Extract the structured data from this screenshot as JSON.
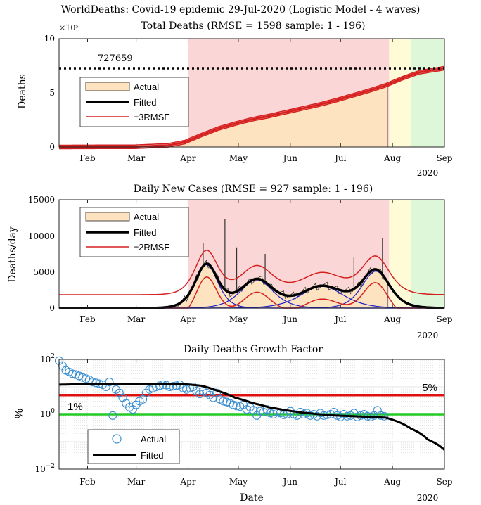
{
  "header": {
    "title": "WorldDeaths: Covid-19 epidemic 29-Jul-2020 (Logistic Model - 4 waves)"
  },
  "colors": {
    "actual_fill": "#fde3c0",
    "fitted": "#000000",
    "band": "#d62020",
    "component": "#2020cc",
    "bg_red": "#fbd6d6",
    "bg_yellow": "#fffbd6",
    "bg_green": "#dff7d9",
    "growth_marker": "#3a8fd0",
    "line_5pct": "#e01010",
    "line_1pct": "#22cc22"
  },
  "chart_data": [
    {
      "type": "area",
      "title": "Total Deaths (RMSE = 1598 sample: 1 - 196)",
      "xlabel": "",
      "ylabel": "Deaths",
      "y_exponent_label": "×10⁵",
      "ylim": [
        0,
        1000000
      ],
      "ytick_labels": [
        "0",
        "5",
        "10"
      ],
      "xtick_labels": [
        "Feb",
        "Mar",
        "Apr",
        "May",
        "Jun",
        "Jul",
        "Aug",
        "Sep"
      ],
      "year_label": "2020",
      "final_value_label": "727659",
      "legend": [
        "Actual",
        "Fitted",
        "±3RMSE"
      ],
      "legend_position": "left",
      "x_day_ticks": [
        32,
        61,
        92,
        122,
        153,
        183,
        214,
        245
      ],
      "x_range_days": [
        15,
        245
      ],
      "background_regions_days": [
        {
          "start": 92,
          "end": 212,
          "color": "red"
        },
        {
          "start": 212,
          "end": 225,
          "color": "yellow"
        },
        {
          "start": 225,
          "end": 245,
          "color": "green"
        }
      ],
      "actual_end_day": 211,
      "fitted_total": 727659,
      "fitted_points_days": [
        15,
        60,
        80,
        90,
        100,
        110,
        120,
        130,
        140,
        150,
        160,
        170,
        180,
        190,
        200,
        210,
        220,
        230,
        245
      ],
      "fitted_points_values": [
        0,
        2000,
        15000,
        45000,
        110000,
        170000,
        215000,
        255000,
        285000,
        320000,
        355000,
        390000,
        430000,
        475000,
        520000,
        570000,
        635000,
        690000,
        727659
      ]
    },
    {
      "type": "line",
      "title": "Daily New Cases (RMSE = 927 sample: 1 - 196)",
      "xlabel": "",
      "ylabel": "Deaths/day",
      "ylim": [
        0,
        15000
      ],
      "ytick_labels": [
        "0",
        "5000",
        "10000",
        "15000"
      ],
      "xtick_labels": [
        "Feb",
        "Mar",
        "Apr",
        "May",
        "Jun",
        "Jul",
        "Aug",
        "Sep"
      ],
      "year_label": "2020",
      "legend": [
        "Actual",
        "Fitted",
        "±2RMSE"
      ],
      "legend_position": "left",
      "waves": [
        {
          "amplitude": 6000,
          "center_day": 103,
          "width": 9
        },
        {
          "amplitude": 3900,
          "center_day": 133,
          "width": 13
        },
        {
          "amplitude": 3000,
          "center_day": 172,
          "width": 17
        },
        {
          "amplitude": 5100,
          "center_day": 204,
          "width": 11
        }
      ],
      "band_offset": 1850,
      "spikes_days": [
        [
          101,
          9000
        ],
        [
          114,
          12300
        ],
        [
          121,
          8400
        ],
        [
          138,
          7500
        ],
        [
          191,
          7000
        ],
        [
          208,
          9700
        ]
      ]
    },
    {
      "type": "scatter",
      "title": "Daily Deaths Growth Factor",
      "xlabel": "Date",
      "ylabel": "%",
      "ylim_log10": [
        -2,
        2
      ],
      "ytick_labels": [
        "10−2",
        "10⁰",
        "10²"
      ],
      "xtick_labels": [
        "Feb",
        "Mar",
        "Apr",
        "May",
        "Jun",
        "Jul",
        "Aug",
        "Sep"
      ],
      "year_label": "2020",
      "legend": [
        "Actual",
        "Fitted"
      ],
      "legend_position": "bottom-left",
      "reference_lines": [
        {
          "label": "5%",
          "value": 5
        },
        {
          "label": "1%",
          "value": 1
        }
      ],
      "fitted_points_days": [
        15,
        40,
        60,
        80,
        90,
        100,
        110,
        120,
        130,
        140,
        150,
        160,
        170,
        180,
        190,
        200,
        210,
        215,
        225,
        235,
        245
      ],
      "fitted_points_percent": [
        12,
        13,
        13,
        13,
        12.5,
        11,
        7,
        4,
        2.6,
        1.8,
        1.4,
        1.15,
        1.0,
        0.9,
        0.85,
        0.8,
        0.75,
        0.6,
        0.3,
        0.12,
        0.05
      ],
      "actual_points_days": [
        15,
        17,
        19,
        21,
        23,
        25,
        27,
        29,
        31,
        33,
        35,
        37,
        39,
        41,
        43,
        45,
        47,
        49,
        51,
        53,
        55,
        57,
        59,
        61,
        63,
        65,
        67,
        69,
        71,
        73,
        75,
        77,
        79,
        81,
        83,
        85,
        87,
        89,
        91,
        93,
        95,
        97,
        99,
        101,
        103,
        105,
        107,
        109,
        111,
        113,
        115,
        117,
        119,
        121,
        123,
        125,
        127,
        129,
        131,
        133,
        135,
        137,
        139,
        141,
        143,
        145,
        147,
        149,
        151,
        153,
        155,
        157,
        159,
        161,
        163,
        165,
        167,
        169,
        171,
        173,
        175,
        177,
        179,
        181,
        183,
        185,
        187,
        189,
        191,
        193,
        195,
        197,
        199,
        201,
        203,
        205,
        207,
        209
      ],
      "actual_points_percent": [
        90,
        60,
        40,
        35,
        30,
        28,
        25,
        22,
        20,
        18,
        15,
        14,
        13,
        12,
        10,
        15,
        0.9,
        8,
        6,
        4,
        2.5,
        1.8,
        1.5,
        2.2,
        3,
        3.5,
        6,
        8,
        9,
        10,
        11,
        12,
        11.5,
        10,
        10.5,
        11,
        12,
        9,
        8,
        9,
        10,
        7,
        5.5,
        7,
        6,
        5,
        4,
        6,
        3.5,
        3,
        2.8,
        2.5,
        2.2,
        2,
        1.9,
        2.2,
        1.5,
        1.8,
        1.4,
        0.9,
        1.3,
        1.2,
        1.5,
        1.1,
        1.0,
        1.2,
        1.1,
        0.95,
        1.0,
        1.3,
        1.0,
        0.9,
        1.2,
        1.0,
        1.1,
        0.9,
        1.0,
        0.85,
        1.1,
        0.9,
        0.95,
        1.0,
        1.2,
        0.9,
        0.8,
        1.0,
        0.85,
        0.9,
        1.1,
        0.8,
        0.9,
        1.0,
        0.85,
        0.8,
        0.9,
        1.4,
        0.9,
        0.85
      ]
    }
  ]
}
